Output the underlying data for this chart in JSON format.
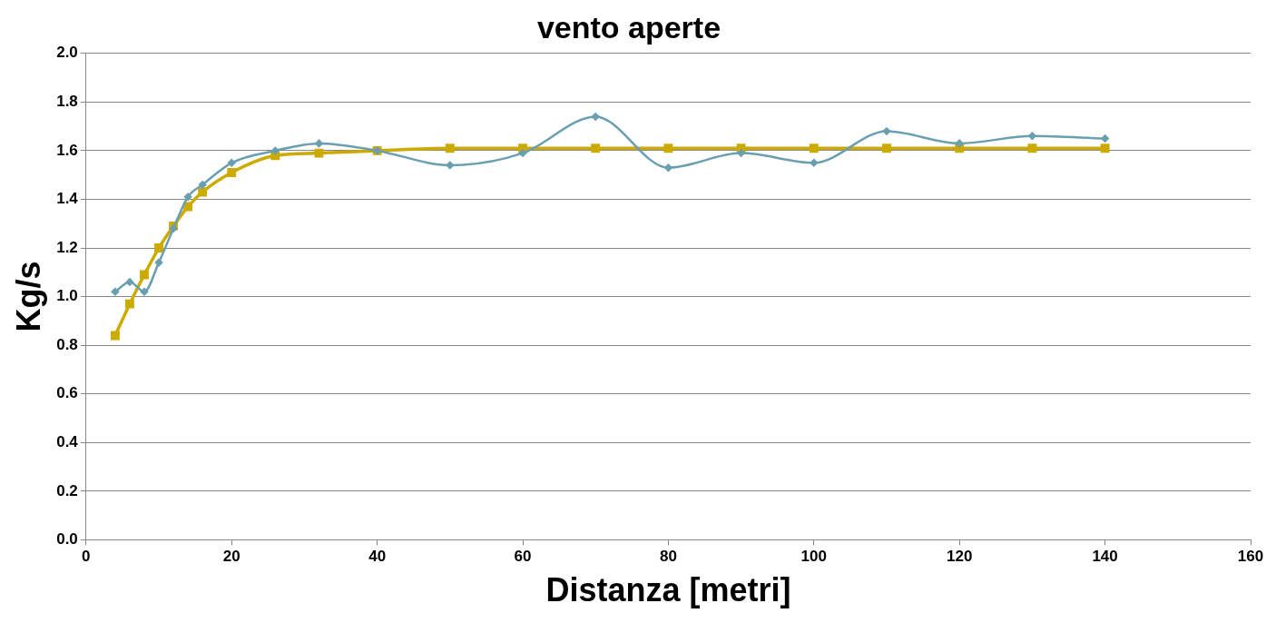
{
  "chart_data": {
    "type": "line",
    "title": "vento aperte",
    "xlabel": "Distanza [metri]",
    "ylabel": "Kg/s",
    "xlim": [
      0,
      160
    ],
    "xticks": [
      0,
      20,
      40,
      60,
      80,
      100,
      120,
      140,
      160
    ],
    "ylim": [
      0,
      2
    ],
    "yticks": [
      {
        "value": 0,
        "label": "0.0"
      },
      {
        "value": 0.2,
        "label": "0.2"
      },
      {
        "value": 0.4,
        "label": "0.4"
      },
      {
        "value": 0.6,
        "label": "0.6"
      },
      {
        "value": 0.8,
        "label": "0.8"
      },
      {
        "value": 1,
        "label": "1.0"
      },
      {
        "value": 1.2,
        "label": "1.2"
      },
      {
        "value": 1.4,
        "label": "1.4"
      },
      {
        "value": 1.6,
        "label": "1.6"
      },
      {
        "value": 1.8,
        "label": "1.8"
      },
      {
        "value": 2,
        "label": "2.0"
      }
    ],
    "grid": "y",
    "legend": false,
    "series": [
      {
        "color": "#6a9fb0",
        "marker": "diamond",
        "x": [
          4,
          6,
          8,
          10,
          12,
          14,
          16,
          20,
          26,
          32,
          40,
          50,
          60,
          70,
          80,
          90,
          100,
          110,
          120,
          130,
          140
        ],
        "values": [
          1.02,
          1.06,
          1.02,
          1.14,
          1.28,
          1.41,
          1.46,
          1.55,
          1.6,
          1.63,
          1.6,
          1.54,
          1.59,
          1.74,
          1.53,
          1.59,
          1.55,
          1.68,
          1.63,
          1.66,
          1.65
        ]
      },
      {
        "color": "#ccaa00",
        "marker": "square",
        "x": [
          4,
          6,
          8,
          10,
          12,
          14,
          16,
          20,
          26,
          32,
          40,
          50,
          60,
          70,
          80,
          90,
          100,
          110,
          120,
          130,
          140
        ],
        "values": [
          0.84,
          0.97,
          1.09,
          1.2,
          1.29,
          1.37,
          1.43,
          1.51,
          1.58,
          1.59,
          1.6,
          1.61,
          1.61,
          1.61,
          1.61,
          1.61,
          1.61,
          1.61,
          1.61,
          1.61,
          1.61
        ]
      }
    ]
  }
}
